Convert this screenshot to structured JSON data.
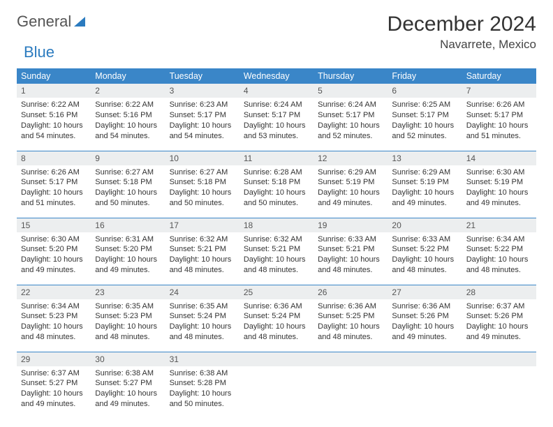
{
  "logo": {
    "text1": "General",
    "text2": "Blue"
  },
  "header": {
    "month_title": "December 2024",
    "location": "Navarrete, Mexico"
  },
  "colors": {
    "header_bg": "#3a86c8",
    "header_text": "#ffffff",
    "daynum_bg": "#eceeef",
    "row_border": "#3a86c8"
  },
  "day_labels": [
    "Sunday",
    "Monday",
    "Tuesday",
    "Wednesday",
    "Thursday",
    "Friday",
    "Saturday"
  ],
  "weeks": [
    [
      {
        "n": "1",
        "sr": "Sunrise: 6:22 AM",
        "ss": "Sunset: 5:16 PM",
        "dl": "Daylight: 10 hours and 54 minutes."
      },
      {
        "n": "2",
        "sr": "Sunrise: 6:22 AM",
        "ss": "Sunset: 5:16 PM",
        "dl": "Daylight: 10 hours and 54 minutes."
      },
      {
        "n": "3",
        "sr": "Sunrise: 6:23 AM",
        "ss": "Sunset: 5:17 PM",
        "dl": "Daylight: 10 hours and 54 minutes."
      },
      {
        "n": "4",
        "sr": "Sunrise: 6:24 AM",
        "ss": "Sunset: 5:17 PM",
        "dl": "Daylight: 10 hours and 53 minutes."
      },
      {
        "n": "5",
        "sr": "Sunrise: 6:24 AM",
        "ss": "Sunset: 5:17 PM",
        "dl": "Daylight: 10 hours and 52 minutes."
      },
      {
        "n": "6",
        "sr": "Sunrise: 6:25 AM",
        "ss": "Sunset: 5:17 PM",
        "dl": "Daylight: 10 hours and 52 minutes."
      },
      {
        "n": "7",
        "sr": "Sunrise: 6:26 AM",
        "ss": "Sunset: 5:17 PM",
        "dl": "Daylight: 10 hours and 51 minutes."
      }
    ],
    [
      {
        "n": "8",
        "sr": "Sunrise: 6:26 AM",
        "ss": "Sunset: 5:17 PM",
        "dl": "Daylight: 10 hours and 51 minutes."
      },
      {
        "n": "9",
        "sr": "Sunrise: 6:27 AM",
        "ss": "Sunset: 5:18 PM",
        "dl": "Daylight: 10 hours and 50 minutes."
      },
      {
        "n": "10",
        "sr": "Sunrise: 6:27 AM",
        "ss": "Sunset: 5:18 PM",
        "dl": "Daylight: 10 hours and 50 minutes."
      },
      {
        "n": "11",
        "sr": "Sunrise: 6:28 AM",
        "ss": "Sunset: 5:18 PM",
        "dl": "Daylight: 10 hours and 50 minutes."
      },
      {
        "n": "12",
        "sr": "Sunrise: 6:29 AM",
        "ss": "Sunset: 5:19 PM",
        "dl": "Daylight: 10 hours and 49 minutes."
      },
      {
        "n": "13",
        "sr": "Sunrise: 6:29 AM",
        "ss": "Sunset: 5:19 PM",
        "dl": "Daylight: 10 hours and 49 minutes."
      },
      {
        "n": "14",
        "sr": "Sunrise: 6:30 AM",
        "ss": "Sunset: 5:19 PM",
        "dl": "Daylight: 10 hours and 49 minutes."
      }
    ],
    [
      {
        "n": "15",
        "sr": "Sunrise: 6:30 AM",
        "ss": "Sunset: 5:20 PM",
        "dl": "Daylight: 10 hours and 49 minutes."
      },
      {
        "n": "16",
        "sr": "Sunrise: 6:31 AM",
        "ss": "Sunset: 5:20 PM",
        "dl": "Daylight: 10 hours and 49 minutes."
      },
      {
        "n": "17",
        "sr": "Sunrise: 6:32 AM",
        "ss": "Sunset: 5:21 PM",
        "dl": "Daylight: 10 hours and 48 minutes."
      },
      {
        "n": "18",
        "sr": "Sunrise: 6:32 AM",
        "ss": "Sunset: 5:21 PM",
        "dl": "Daylight: 10 hours and 48 minutes."
      },
      {
        "n": "19",
        "sr": "Sunrise: 6:33 AM",
        "ss": "Sunset: 5:21 PM",
        "dl": "Daylight: 10 hours and 48 minutes."
      },
      {
        "n": "20",
        "sr": "Sunrise: 6:33 AM",
        "ss": "Sunset: 5:22 PM",
        "dl": "Daylight: 10 hours and 48 minutes."
      },
      {
        "n": "21",
        "sr": "Sunrise: 6:34 AM",
        "ss": "Sunset: 5:22 PM",
        "dl": "Daylight: 10 hours and 48 minutes."
      }
    ],
    [
      {
        "n": "22",
        "sr": "Sunrise: 6:34 AM",
        "ss": "Sunset: 5:23 PM",
        "dl": "Daylight: 10 hours and 48 minutes."
      },
      {
        "n": "23",
        "sr": "Sunrise: 6:35 AM",
        "ss": "Sunset: 5:23 PM",
        "dl": "Daylight: 10 hours and 48 minutes."
      },
      {
        "n": "24",
        "sr": "Sunrise: 6:35 AM",
        "ss": "Sunset: 5:24 PM",
        "dl": "Daylight: 10 hours and 48 minutes."
      },
      {
        "n": "25",
        "sr": "Sunrise: 6:36 AM",
        "ss": "Sunset: 5:24 PM",
        "dl": "Daylight: 10 hours and 48 minutes."
      },
      {
        "n": "26",
        "sr": "Sunrise: 6:36 AM",
        "ss": "Sunset: 5:25 PM",
        "dl": "Daylight: 10 hours and 48 minutes."
      },
      {
        "n": "27",
        "sr": "Sunrise: 6:36 AM",
        "ss": "Sunset: 5:26 PM",
        "dl": "Daylight: 10 hours and 49 minutes."
      },
      {
        "n": "28",
        "sr": "Sunrise: 6:37 AM",
        "ss": "Sunset: 5:26 PM",
        "dl": "Daylight: 10 hours and 49 minutes."
      }
    ],
    [
      {
        "n": "29",
        "sr": "Sunrise: 6:37 AM",
        "ss": "Sunset: 5:27 PM",
        "dl": "Daylight: 10 hours and 49 minutes."
      },
      {
        "n": "30",
        "sr": "Sunrise: 6:38 AM",
        "ss": "Sunset: 5:27 PM",
        "dl": "Daylight: 10 hours and 49 minutes."
      },
      {
        "n": "31",
        "sr": "Sunrise: 6:38 AM",
        "ss": "Sunset: 5:28 PM",
        "dl": "Daylight: 10 hours and 50 minutes."
      },
      null,
      null,
      null,
      null
    ]
  ]
}
